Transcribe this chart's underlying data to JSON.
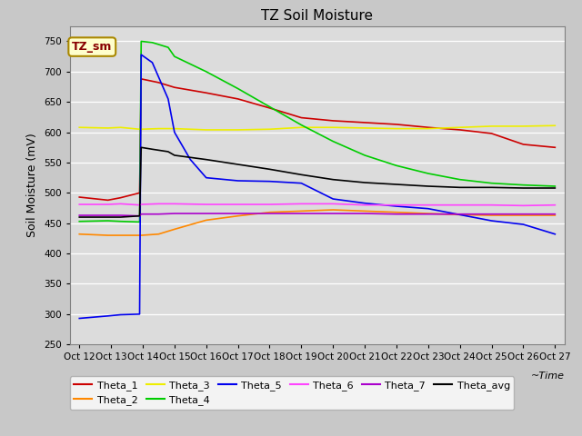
{
  "title": "TZ Soil Moisture",
  "xlabel": "~Time",
  "ylabel": "Soil Moisture (mV)",
  "ylim": [
    250,
    775
  ],
  "yticks": [
    250,
    300,
    350,
    400,
    450,
    500,
    550,
    600,
    650,
    700,
    750
  ],
  "xlim": [
    0,
    15
  ],
  "xtick_labels": [
    "Oct 12",
    "Oct 13",
    "Oct 14",
    "Oct 15",
    "Oct 16",
    "Oct 17",
    "Oct 18",
    "Oct 19",
    "Oct 20",
    "Oct 21",
    "Oct 22",
    "Oct 23",
    "Oct 24",
    "Oct 25",
    "Oct 26",
    "Oct 27"
  ],
  "legend_label": "TZ_sm",
  "background_color": "#dcdcdc",
  "fig_color": "#c8c8c8",
  "grid_color": "#ffffff",
  "series": {
    "Theta_1": {
      "color": "#cc0000",
      "points": [
        [
          0,
          493
        ],
        [
          0.9,
          488
        ],
        [
          1.3,
          492
        ],
        [
          1.9,
          500
        ],
        [
          1.95,
          688
        ],
        [
          2.5,
          682
        ],
        [
          3,
          674
        ],
        [
          4,
          665
        ],
        [
          5,
          655
        ],
        [
          6,
          640
        ],
        [
          7,
          624
        ],
        [
          8,
          619
        ],
        [
          9,
          616
        ],
        [
          10,
          613
        ],
        [
          11,
          608
        ],
        [
          12,
          604
        ],
        [
          13,
          598
        ],
        [
          14,
          580
        ],
        [
          15,
          575
        ]
      ]
    },
    "Theta_2": {
      "color": "#ff8800",
      "points": [
        [
          0,
          432
        ],
        [
          0.9,
          430
        ],
        [
          1.3,
          430
        ],
        [
          1.9,
          430
        ],
        [
          1.95,
          430
        ],
        [
          2.5,
          432
        ],
        [
          3,
          440
        ],
        [
          4,
          455
        ],
        [
          5,
          462
        ],
        [
          6,
          468
        ],
        [
          7,
          470
        ],
        [
          8,
          472
        ],
        [
          9,
          470
        ],
        [
          10,
          468
        ],
        [
          11,
          466
        ],
        [
          12,
          464
        ],
        [
          13,
          463
        ],
        [
          14,
          463
        ],
        [
          15,
          463
        ]
      ]
    },
    "Theta_3": {
      "color": "#eeee00",
      "points": [
        [
          0,
          608
        ],
        [
          0.9,
          607
        ],
        [
          1.3,
          608
        ],
        [
          1.9,
          605
        ],
        [
          1.95,
          605
        ],
        [
          2.5,
          606
        ],
        [
          3,
          606
        ],
        [
          4,
          604
        ],
        [
          5,
          604
        ],
        [
          6,
          605
        ],
        [
          7,
          608
        ],
        [
          8,
          608
        ],
        [
          9,
          607
        ],
        [
          10,
          606
        ],
        [
          11,
          606
        ],
        [
          12,
          608
        ],
        [
          13,
          610
        ],
        [
          14,
          610
        ],
        [
          15,
          611
        ]
      ]
    },
    "Theta_4": {
      "color": "#00cc00",
      "points": [
        [
          0,
          453
        ],
        [
          0.9,
          454
        ],
        [
          1.3,
          453
        ],
        [
          1.9,
          452
        ],
        [
          1.95,
          750
        ],
        [
          2.3,
          748
        ],
        [
          2.8,
          740
        ],
        [
          3,
          725
        ],
        [
          4,
          700
        ],
        [
          5,
          672
        ],
        [
          6,
          642
        ],
        [
          7,
          612
        ],
        [
          8,
          585
        ],
        [
          9,
          562
        ],
        [
          10,
          545
        ],
        [
          11,
          532
        ],
        [
          12,
          522
        ],
        [
          13,
          516
        ],
        [
          14,
          513
        ],
        [
          15,
          511
        ]
      ]
    },
    "Theta_5": {
      "color": "#0000ee",
      "points": [
        [
          0,
          293
        ],
        [
          0.9,
          297
        ],
        [
          1.3,
          299
        ],
        [
          1.9,
          300
        ],
        [
          1.95,
          728
        ],
        [
          2.3,
          715
        ],
        [
          2.8,
          655
        ],
        [
          3,
          600
        ],
        [
          3.5,
          555
        ],
        [
          4,
          525
        ],
        [
          5,
          520
        ],
        [
          6,
          519
        ],
        [
          7,
          516
        ],
        [
          8,
          490
        ],
        [
          9,
          483
        ],
        [
          10,
          478
        ],
        [
          11,
          474
        ],
        [
          12,
          464
        ],
        [
          13,
          454
        ],
        [
          14,
          448
        ],
        [
          15,
          432
        ]
      ]
    },
    "Theta_6": {
      "color": "#ff44ff",
      "points": [
        [
          0,
          481
        ],
        [
          0.9,
          481
        ],
        [
          1.3,
          482
        ],
        [
          1.9,
          480
        ],
        [
          1.95,
          481
        ],
        [
          2.5,
          482
        ],
        [
          3,
          482
        ],
        [
          4,
          481
        ],
        [
          5,
          481
        ],
        [
          6,
          481
        ],
        [
          7,
          482
        ],
        [
          8,
          482
        ],
        [
          9,
          480
        ],
        [
          10,
          480
        ],
        [
          11,
          480
        ],
        [
          12,
          480
        ],
        [
          13,
          480
        ],
        [
          14,
          479
        ],
        [
          15,
          480
        ]
      ]
    },
    "Theta_7": {
      "color": "#aa00cc",
      "points": [
        [
          0,
          463
        ],
        [
          0.9,
          463
        ],
        [
          1.3,
          463
        ],
        [
          1.9,
          462
        ],
        [
          1.95,
          465
        ],
        [
          2.5,
          465
        ],
        [
          3,
          466
        ],
        [
          4,
          466
        ],
        [
          5,
          466
        ],
        [
          6,
          466
        ],
        [
          7,
          466
        ],
        [
          8,
          466
        ],
        [
          9,
          466
        ],
        [
          10,
          465
        ],
        [
          11,
          465
        ],
        [
          12,
          465
        ],
        [
          13,
          465
        ],
        [
          14,
          465
        ],
        [
          15,
          465
        ]
      ]
    },
    "Theta_avg": {
      "color": "#000000",
      "points": [
        [
          0,
          460
        ],
        [
          0.9,
          460
        ],
        [
          1.3,
          460
        ],
        [
          1.9,
          462
        ],
        [
          1.95,
          575
        ],
        [
          2.3,
          572
        ],
        [
          2.8,
          568
        ],
        [
          3,
          562
        ],
        [
          4,
          555
        ],
        [
          5,
          547
        ],
        [
          6,
          539
        ],
        [
          7,
          530
        ],
        [
          8,
          522
        ],
        [
          9,
          517
        ],
        [
          10,
          514
        ],
        [
          11,
          511
        ],
        [
          12,
          509
        ],
        [
          13,
          509
        ],
        [
          14,
          508
        ],
        [
          15,
          508
        ]
      ]
    }
  },
  "legend_order": [
    "Theta_1",
    "Theta_2",
    "Theta_3",
    "Theta_4",
    "Theta_5",
    "Theta_6",
    "Theta_7",
    "Theta_avg"
  ]
}
